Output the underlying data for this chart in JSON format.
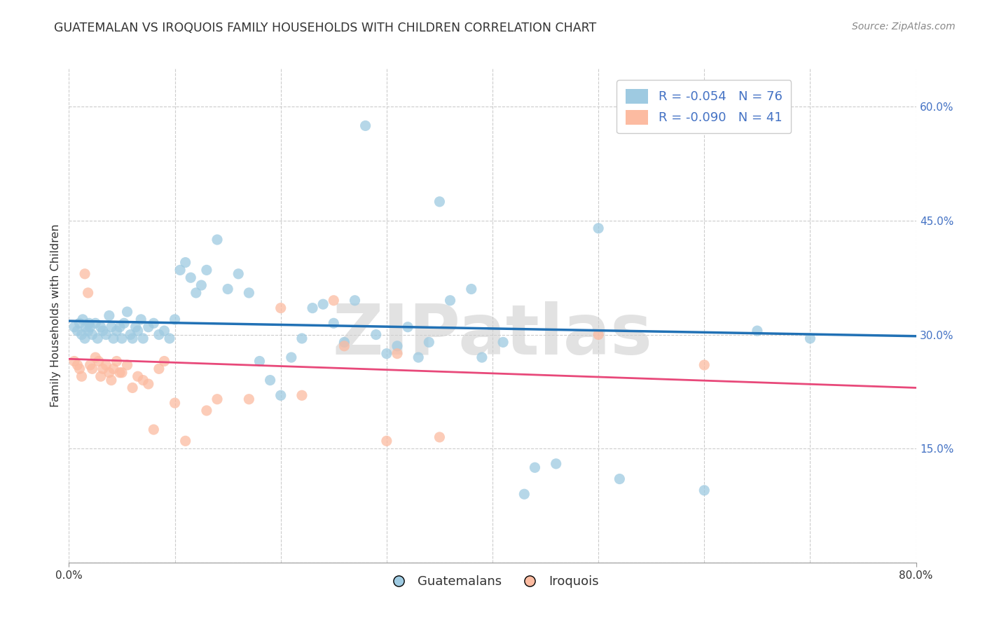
{
  "title": "GUATEMALAN VS IROQUOIS FAMILY HOUSEHOLDS WITH CHILDREN CORRELATION CHART",
  "source": "Source: ZipAtlas.com",
  "ylabel": "Family Households with Children",
  "watermark": "ZIPatlas",
  "legend_blue_r": "R = -0.054",
  "legend_blue_n": "N = 76",
  "legend_pink_r": "R = -0.090",
  "legend_pink_n": "N = 41",
  "legend_label1": "Guatemalans",
  "legend_label2": "Iroquois",
  "xlim": [
    0.0,
    0.8
  ],
  "ylim": [
    0.0,
    0.65
  ],
  "ytick_positions": [
    0.0,
    0.15,
    0.3,
    0.45,
    0.6
  ],
  "ytick_labels": [
    "",
    "15.0%",
    "30.0%",
    "45.0%",
    "60.0%"
  ],
  "blue_color": "#9ecae1",
  "pink_color": "#fcbba1",
  "line_blue": "#2171b5",
  "line_pink": "#e8497a",
  "background": "#ffffff",
  "grid_color": "#cccccc",
  "blue_x": [
    0.005,
    0.008,
    0.01,
    0.012,
    0.013,
    0.015,
    0.016,
    0.018,
    0.019,
    0.02,
    0.022,
    0.025,
    0.027,
    0.03,
    0.032,
    0.035,
    0.038,
    0.04,
    0.042,
    0.045,
    0.048,
    0.05,
    0.052,
    0.055,
    0.058,
    0.06,
    0.063,
    0.065,
    0.068,
    0.07,
    0.075,
    0.08,
    0.085,
    0.09,
    0.095,
    0.1,
    0.105,
    0.11,
    0.115,
    0.12,
    0.125,
    0.13,
    0.14,
    0.15,
    0.16,
    0.17,
    0.18,
    0.19,
    0.2,
    0.21,
    0.22,
    0.23,
    0.24,
    0.25,
    0.26,
    0.27,
    0.28,
    0.29,
    0.3,
    0.31,
    0.32,
    0.33,
    0.34,
    0.35,
    0.36,
    0.38,
    0.39,
    0.41,
    0.43,
    0.44,
    0.46,
    0.5,
    0.52,
    0.6,
    0.65,
    0.7
  ],
  "blue_y": [
    0.31,
    0.305,
    0.315,
    0.3,
    0.32,
    0.295,
    0.31,
    0.305,
    0.315,
    0.31,
    0.3,
    0.315,
    0.295,
    0.31,
    0.305,
    0.3,
    0.325,
    0.31,
    0.295,
    0.305,
    0.31,
    0.295,
    0.315,
    0.33,
    0.3,
    0.295,
    0.31,
    0.305,
    0.32,
    0.295,
    0.31,
    0.315,
    0.3,
    0.305,
    0.295,
    0.32,
    0.385,
    0.395,
    0.375,
    0.355,
    0.365,
    0.385,
    0.425,
    0.36,
    0.38,
    0.355,
    0.265,
    0.24,
    0.22,
    0.27,
    0.295,
    0.335,
    0.34,
    0.315,
    0.29,
    0.345,
    0.575,
    0.3,
    0.275,
    0.285,
    0.31,
    0.27,
    0.29,
    0.475,
    0.345,
    0.36,
    0.27,
    0.29,
    0.09,
    0.125,
    0.13,
    0.44,
    0.11,
    0.095,
    0.305,
    0.295
  ],
  "pink_x": [
    0.005,
    0.008,
    0.01,
    0.012,
    0.015,
    0.018,
    0.02,
    0.022,
    0.025,
    0.028,
    0.03,
    0.032,
    0.035,
    0.038,
    0.04,
    0.042,
    0.045,
    0.048,
    0.05,
    0.055,
    0.06,
    0.065,
    0.07,
    0.075,
    0.08,
    0.085,
    0.09,
    0.1,
    0.11,
    0.13,
    0.14,
    0.17,
    0.2,
    0.22,
    0.25,
    0.26,
    0.3,
    0.31,
    0.35,
    0.5,
    0.6
  ],
  "pink_y": [
    0.265,
    0.26,
    0.255,
    0.245,
    0.38,
    0.355,
    0.26,
    0.255,
    0.27,
    0.265,
    0.245,
    0.255,
    0.26,
    0.25,
    0.24,
    0.255,
    0.265,
    0.25,
    0.25,
    0.26,
    0.23,
    0.245,
    0.24,
    0.235,
    0.175,
    0.255,
    0.265,
    0.21,
    0.16,
    0.2,
    0.215,
    0.215,
    0.335,
    0.22,
    0.345,
    0.285,
    0.16,
    0.275,
    0.165,
    0.3,
    0.26
  ],
  "blue_line_y0": 0.318,
  "blue_line_y1": 0.298,
  "pink_line_y0": 0.268,
  "pink_line_y1": 0.23
}
